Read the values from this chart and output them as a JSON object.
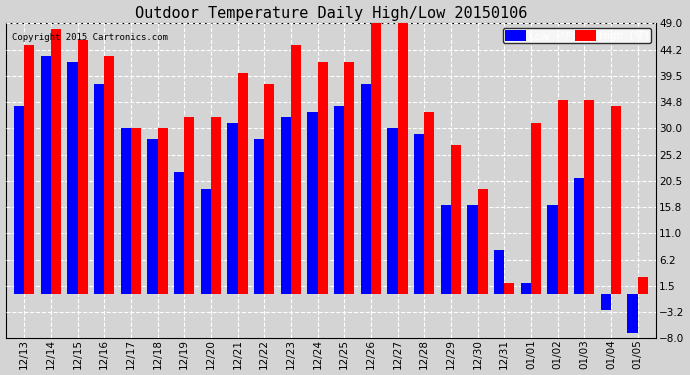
{
  "title": "Outdoor Temperature Daily High/Low 20150106",
  "copyright": "Copyright 2015 Cartronics.com",
  "dates": [
    "12/13",
    "12/14",
    "12/15",
    "12/16",
    "12/17",
    "12/18",
    "12/19",
    "12/20",
    "12/21",
    "12/22",
    "12/23",
    "12/24",
    "12/25",
    "12/26",
    "12/27",
    "12/28",
    "12/29",
    "12/30",
    "12/31",
    "01/01",
    "01/02",
    "01/03",
    "01/04",
    "01/05"
  ],
  "high": [
    45,
    48,
    46,
    43,
    30,
    30,
    32,
    32,
    40,
    38,
    45,
    42,
    42,
    49,
    49,
    33,
    27,
    19,
    2,
    31,
    35,
    35,
    34,
    3
  ],
  "low": [
    34,
    43,
    42,
    38,
    30,
    28,
    22,
    19,
    31,
    28,
    32,
    33,
    34,
    38,
    30,
    29,
    16,
    16,
    8,
    2,
    16,
    21,
    -3,
    -7
  ],
  "ylim_min": -8.0,
  "ylim_max": 49.0,
  "yticks": [
    -8.0,
    -3.2,
    1.5,
    6.2,
    11.0,
    15.8,
    20.5,
    25.2,
    30.0,
    34.8,
    39.5,
    44.2,
    49.0
  ],
  "high_color": "#ff0000",
  "low_color": "#0000ff",
  "bg_color": "#d4d4d4",
  "plot_bg_color": "#d4d4d4",
  "title_fontsize": 11,
  "bar_width": 0.38,
  "grid_color": "white"
}
